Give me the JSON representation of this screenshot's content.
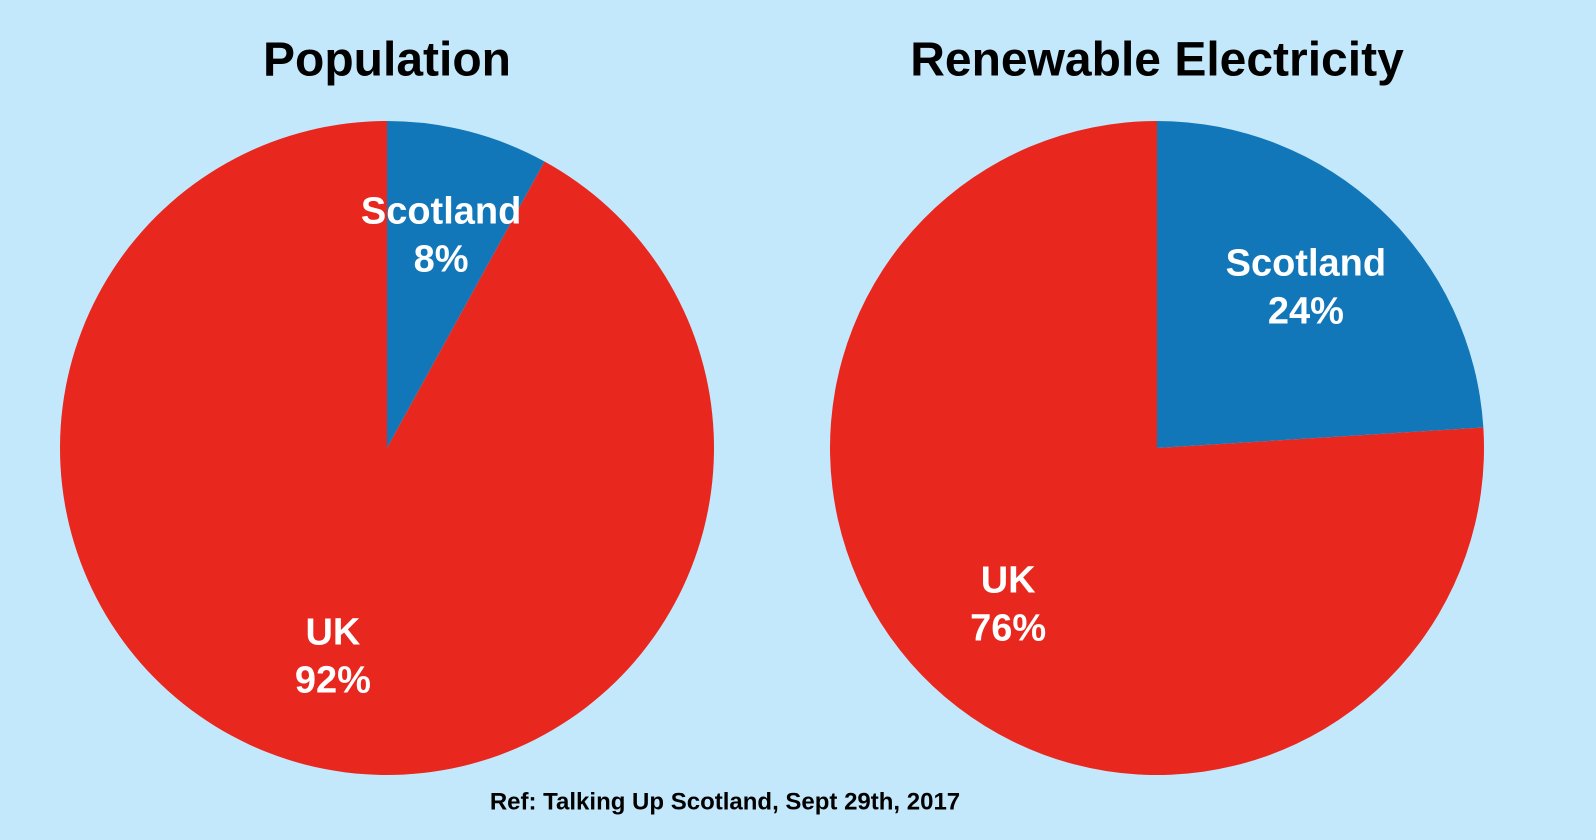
{
  "chart_data": [
    {
      "type": "pie",
      "title": "Population",
      "categories": [
        "Scotland",
        "UK"
      ],
      "values": [
        8,
        92
      ],
      "value_labels": [
        "8%",
        "92%"
      ],
      "colors": [
        "#1277b9",
        "#e8271f"
      ]
    },
    {
      "type": "pie",
      "title": "Renewable Electricity",
      "categories": [
        "Scotland",
        "UK"
      ],
      "values": [
        24,
        76
      ],
      "value_labels": [
        "24%",
        "76%"
      ],
      "colors": [
        "#1277b9",
        "#e8271f"
      ]
    }
  ],
  "footer": "Ref: Talking Up Scotland, Sept 29th, 2017"
}
